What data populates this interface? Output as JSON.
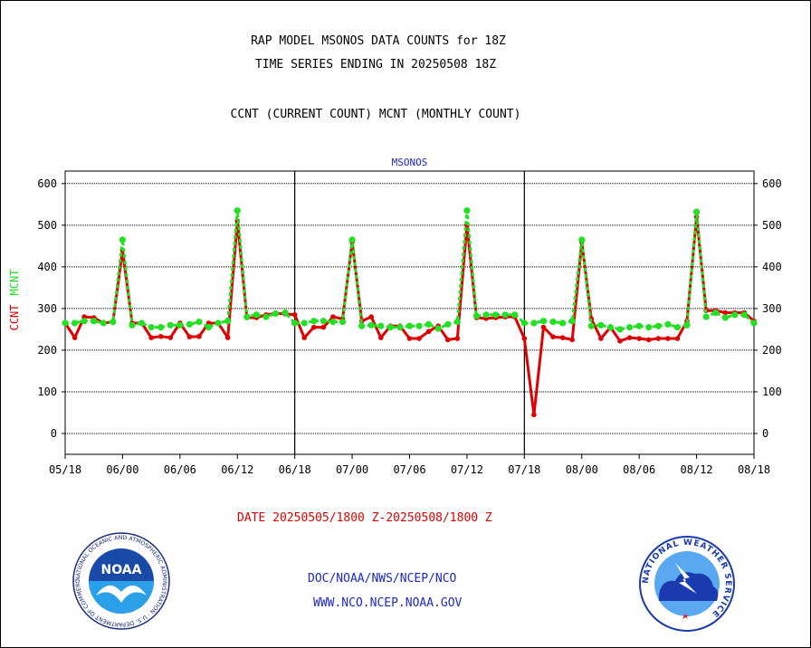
{
  "header": {
    "line1": "RAP MODEL MSONOS DATA COUNTS for 18Z",
    "line2": "TIME SERIES ENDING IN 20250508 18Z",
    "line3": "CCNT (CURRENT COUNT) MCNT (MONTHLY COUNT)"
  },
  "chart_data": {
    "type": "line",
    "title": "MSONOS",
    "ylabel_left": [
      "CCNT",
      "MCNT"
    ],
    "ylim": [
      -50,
      630
    ],
    "yticks": [
      0,
      100,
      200,
      300,
      400,
      500,
      600
    ],
    "xticks": [
      "05/18",
      "06/00",
      "06/06",
      "06/12",
      "06/18",
      "07/00",
      "07/06",
      "07/12",
      "07/18",
      "08/00",
      "08/06",
      "08/12",
      "08/18"
    ],
    "x_range_hours": [
      0,
      72
    ],
    "grid": "horizontal",
    "colors": {
      "ccnt": "#e00000",
      "mcnt": "#22e022"
    },
    "series": [
      {
        "name": "CCNT",
        "color": "#e00000",
        "x": [
          0,
          1,
          2,
          3,
          4,
          5,
          6,
          7,
          8,
          9,
          10,
          11,
          12,
          13,
          14,
          15,
          16,
          17,
          18,
          19,
          20,
          21,
          22,
          23,
          24,
          25,
          26,
          27,
          28,
          29,
          30,
          31,
          32,
          33,
          34,
          35,
          36,
          37,
          38,
          39,
          40,
          41,
          42,
          43,
          44,
          45,
          46,
          47,
          48,
          49,
          50,
          51,
          52,
          53,
          54,
          55,
          56,
          57,
          58,
          59,
          60,
          61,
          62,
          63,
          64,
          65,
          66,
          67,
          68,
          69,
          70,
          71,
          72
        ],
        "values": [
          265,
          230,
          280,
          278,
          265,
          268,
          440,
          265,
          265,
          230,
          233,
          230,
          265,
          232,
          233,
          265,
          265,
          230,
          510,
          278,
          278,
          285,
          288,
          287,
          285,
          230,
          255,
          255,
          280,
          275,
          460,
          270,
          280,
          230,
          258,
          258,
          228,
          228,
          245,
          258,
          225,
          228,
          500,
          278,
          276,
          278,
          280,
          280,
          228,
          45,
          255,
          232,
          230,
          225,
          460,
          275,
          228,
          255,
          222,
          230,
          228,
          225,
          228,
          228,
          228,
          270,
          520,
          295,
          295,
          290,
          290,
          290,
          270
        ]
      },
      {
        "name": "MCNT",
        "color": "#22e022",
        "x": [
          0,
          1,
          2,
          3,
          4,
          5,
          6,
          7,
          8,
          9,
          10,
          11,
          12,
          13,
          14,
          15,
          16,
          17,
          18,
          19,
          20,
          21,
          22,
          23,
          24,
          25,
          26,
          27,
          28,
          29,
          30,
          31,
          32,
          33,
          34,
          35,
          36,
          37,
          38,
          39,
          40,
          41,
          42,
          43,
          44,
          45,
          46,
          47,
          48,
          49,
          50,
          51,
          52,
          53,
          54,
          55,
          56,
          57,
          58,
          59,
          60,
          61,
          62,
          63,
          64,
          65,
          66,
          67,
          68,
          69,
          70,
          71,
          72
        ],
        "values": [
          265,
          265,
          270,
          270,
          265,
          268,
          465,
          260,
          265,
          255,
          255,
          260,
          260,
          262,
          268,
          255,
          265,
          270,
          535,
          280,
          285,
          280,
          288,
          290,
          265,
          265,
          270,
          270,
          268,
          268,
          465,
          258,
          260,
          258,
          255,
          255,
          258,
          258,
          262,
          252,
          262,
          268,
          535,
          282,
          285,
          285,
          285,
          285,
          265,
          265,
          270,
          268,
          265,
          270,
          465,
          258,
          260,
          255,
          250,
          255,
          258,
          255,
          258,
          262,
          255,
          260,
          532,
          280,
          290,
          278,
          285,
          285,
          265
        ]
      }
    ]
  },
  "date_range": "DATE 20250505/1800 Z-20250508/1800 Z",
  "footer": {
    "org": "DOC/NOAA/NWS/NCEP/NCO",
    "url": "WWW.NCO.NCEP.NOAA.GOV"
  },
  "logos": {
    "left_name": "noaa-logo",
    "left_text": "NOAA",
    "left_ring": "NATIONAL OCEANIC AND ATMOSPHERIC ADMINISTRATION · U.S. DEPARTMENT OF COMMERCE",
    "right_name": "nws-logo",
    "right_ring": "NATIONAL WEATHER SERVICE"
  }
}
